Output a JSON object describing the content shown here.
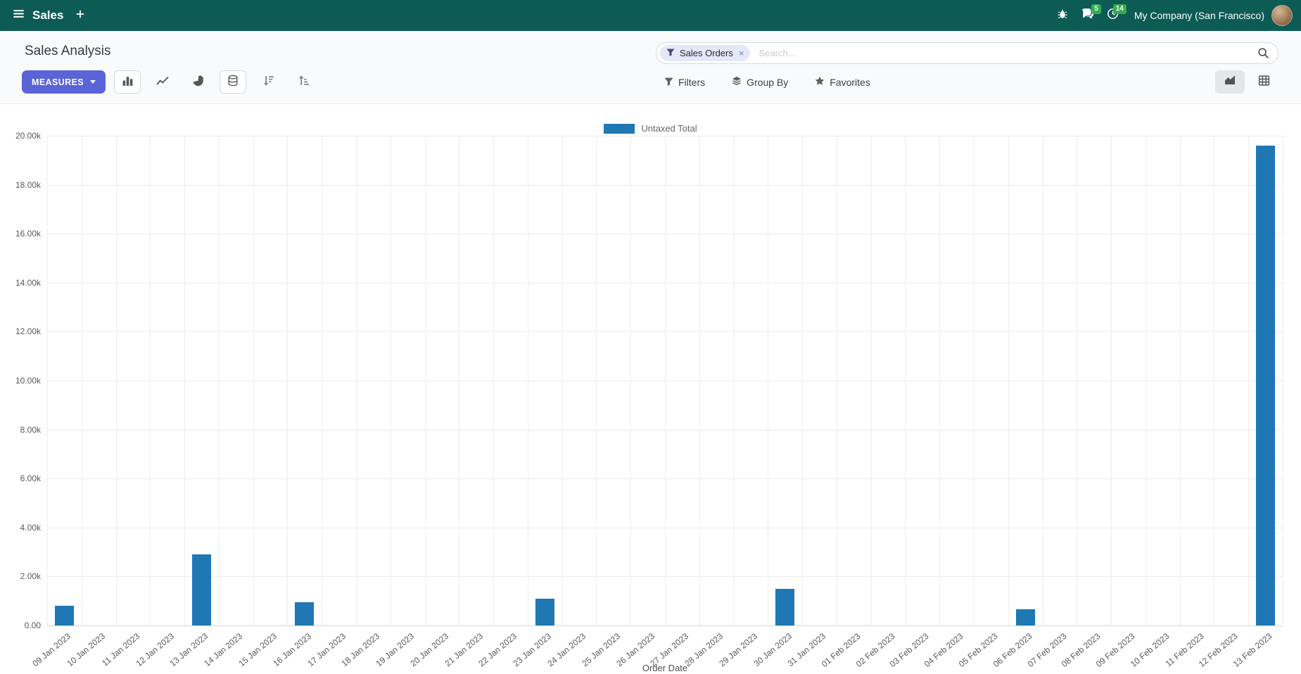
{
  "navbar": {
    "app_name": "Sales",
    "company": "My Company (San Francisco)",
    "message_badge": "5",
    "activity_badge": "14"
  },
  "control_panel": {
    "title": "Sales Analysis",
    "measures_label": "MEASURES",
    "search": {
      "facet_label": "Sales Orders",
      "facet_remove": "×",
      "placeholder": "Search..."
    },
    "filters_label": "Filters",
    "group_by_label": "Group By",
    "favorites_label": "Favorites"
  },
  "chart_data": {
    "type": "bar",
    "title": "",
    "xlabel": "Order Date",
    "ylabel": "",
    "ylim": [
      0,
      20000
    ],
    "grid": true,
    "legend_position": "top",
    "legend": [
      {
        "label": "Untaxed Total",
        "color": "#1f77b4"
      }
    ],
    "y_ticks": [
      0,
      2000,
      4000,
      6000,
      8000,
      10000,
      12000,
      14000,
      16000,
      18000,
      20000
    ],
    "y_tick_labels": [
      "0.00",
      "2.00k",
      "4.00k",
      "6.00k",
      "8.00k",
      "10.00k",
      "12.00k",
      "14.00k",
      "16.00k",
      "18.00k",
      "20.00k"
    ],
    "categories": [
      "09 Jan 2023",
      "10 Jan 2023",
      "11 Jan 2023",
      "12 Jan 2023",
      "13 Jan 2023",
      "14 Jan 2023",
      "15 Jan 2023",
      "16 Jan 2023",
      "17 Jan 2023",
      "18 Jan 2023",
      "19 Jan 2023",
      "20 Jan 2023",
      "21 Jan 2023",
      "22 Jan 2023",
      "23 Jan 2023",
      "24 Jan 2023",
      "25 Jan 2023",
      "26 Jan 2023",
      "27 Jan 2023",
      "28 Jan 2023",
      "29 Jan 2023",
      "30 Jan 2023",
      "31 Jan 2023",
      "01 Feb 2023",
      "02 Feb 2023",
      "03 Feb 2023",
      "04 Feb 2023",
      "05 Feb 2023",
      "06 Feb 2023",
      "07 Feb 2023",
      "08 Feb 2023",
      "09 Feb 2023",
      "10 Feb 2023",
      "11 Feb 2023",
      "12 Feb 2023",
      "13 Feb 2023"
    ],
    "series": [
      {
        "name": "Untaxed Total",
        "color": "#1f77b4",
        "values": [
          800,
          0,
          0,
          0,
          2900,
          0,
          0,
          950,
          0,
          0,
          0,
          0,
          0,
          0,
          1080,
          0,
          0,
          0,
          0,
          0,
          0,
          1500,
          0,
          0,
          0,
          0,
          0,
          0,
          650,
          0,
          0,
          0,
          0,
          0,
          0,
          19600
        ]
      }
    ]
  }
}
